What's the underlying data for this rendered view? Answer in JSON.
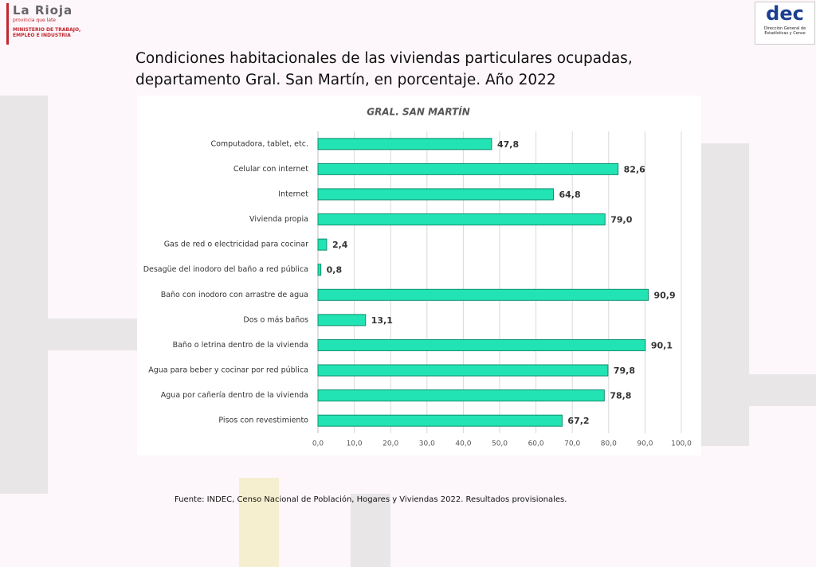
{
  "header": {
    "brand": "La Rioja",
    "tagline": "provincia que late",
    "ministry": "MINISTERIO DE TRABAJO, EMPLEO E INDUSTRIA",
    "logo_right": "DEC",
    "logo_right_caption": "Dirección General de Estadísticas y Censo"
  },
  "title": "Condiciones habitacionales de las viviendas particulares ocupadas, departamento Gral. San Martín, en porcentaje. Año 2022",
  "source": "Fuente: INDEC, Censo Nacional de Población, Hogares y Viviendas 2022. Resultados provisionales.",
  "chart_data": {
    "type": "bar",
    "orientation": "horizontal",
    "title": "GRAL. SAN MARTÍN",
    "categories": [
      "Computadora, tablet, etc.",
      "Celular con internet",
      "Internet",
      "Vivienda propia",
      "Gas de red o electricidad para cocinar",
      "Desagüe del inodoro del baño a red pública",
      "Baño con inodoro con arrastre de agua",
      "Dos o más baños",
      "Baño o letrina dentro de la vivienda",
      "Agua para beber y cocinar por red pública",
      "Agua por cañería dentro de la vivienda",
      "Pisos con revestimiento"
    ],
    "values": [
      47.8,
      82.6,
      64.8,
      79.0,
      2.4,
      0.8,
      90.9,
      13.1,
      90.1,
      79.8,
      78.8,
      67.2
    ],
    "value_labels": [
      "47,8",
      "82,6",
      "64,8",
      "79,0",
      "2,4",
      "0,8",
      "90,9",
      "13,1",
      "90,1",
      "79,8",
      "78,8",
      "67,2"
    ],
    "color": "#22e3b4",
    "xlim": [
      0,
      100
    ],
    "xticks": [
      {
        "value": 0,
        "label": "0,0"
      },
      {
        "value": 10,
        "label": "10,0"
      },
      {
        "value": 20,
        "label": "20,0"
      },
      {
        "value": 30,
        "label": "30,0"
      },
      {
        "value": 40,
        "label": "40,0"
      },
      {
        "value": 50,
        "label": "50,0"
      },
      {
        "value": 60,
        "label": "60,0"
      },
      {
        "value": 70,
        "label": "70,0"
      },
      {
        "value": 80,
        "label": "80,0"
      },
      {
        "value": 90,
        "label": "90,0"
      },
      {
        "value": 100,
        "label": "100,0"
      }
    ],
    "grid": true
  }
}
